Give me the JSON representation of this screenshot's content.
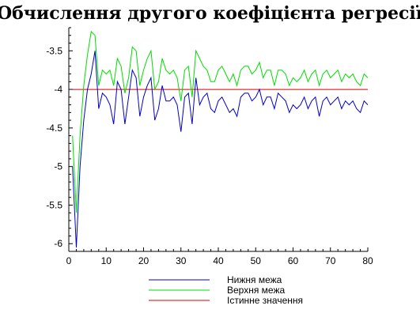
{
  "chart_data": {
    "type": "line",
    "title": "Обчислення другого коефіцієнта регресії",
    "xlabel": "",
    "ylabel": "",
    "xlim": [
      0,
      80
    ],
    "ylim": [
      -6.1,
      -3.2
    ],
    "x_ticks": [
      "0",
      "10",
      "20",
      "30",
      "40",
      "50",
      "60",
      "70",
      "80"
    ],
    "y_ticks": [
      "-3.5",
      "-4",
      "-4.5",
      "-5",
      "-5.5",
      "-6"
    ],
    "x_tick_values": [
      0,
      10,
      20,
      30,
      40,
      50,
      60,
      70,
      80
    ],
    "y_tick_values": [
      -3.5,
      -4,
      -4.5,
      -5,
      -5.5,
      -6
    ],
    "grid": false,
    "legend_position": "bottom",
    "series": [
      {
        "name": "Нижня межа",
        "color": "#0000cc",
        "x": [
          1,
          2,
          3,
          4,
          5,
          6,
          7,
          8,
          9,
          10,
          11,
          12,
          13,
          14,
          15,
          16,
          17,
          18,
          19,
          20,
          21,
          22,
          23,
          24,
          25,
          26,
          27,
          28,
          29,
          30,
          31,
          32,
          33,
          34,
          35,
          36,
          37,
          38,
          39,
          40,
          41,
          42,
          43,
          44,
          45,
          46,
          47,
          48,
          49,
          50,
          51,
          52,
          53,
          54,
          55,
          56,
          57,
          58,
          59,
          60,
          61,
          62,
          63,
          64,
          65,
          66,
          67,
          68,
          69,
          70,
          71,
          72,
          73,
          74,
          75,
          76,
          77,
          78,
          79,
          80
        ],
        "values": [
          -5.0,
          -6.05,
          -5.0,
          -4.4,
          -4.0,
          -3.8,
          -3.5,
          -4.25,
          -4.05,
          -4.1,
          -4.2,
          -4.45,
          -3.9,
          -4.0,
          -4.45,
          -4.1,
          -3.75,
          -3.85,
          -4.35,
          -4.1,
          -3.95,
          -3.85,
          -4.4,
          -4.25,
          -3.95,
          -4.15,
          -4.15,
          -4.1,
          -4.2,
          -4.55,
          -4.1,
          -4.05,
          -4.45,
          -3.85,
          -4.2,
          -4.1,
          -4.05,
          -4.25,
          -4.3,
          -4.15,
          -4.1,
          -4.2,
          -4.3,
          -4.25,
          -4.35,
          -4.1,
          -4.05,
          -4.05,
          -4.15,
          -4.1,
          -4.0,
          -4.2,
          -4.1,
          -4.1,
          -4.25,
          -4.05,
          -4.1,
          -4.15,
          -4.3,
          -4.2,
          -4.25,
          -4.2,
          -4.1,
          -4.25,
          -4.15,
          -4.1,
          -4.35,
          -4.15,
          -4.1,
          -4.2,
          -4.15,
          -4.1,
          -4.25,
          -4.15,
          -4.2,
          -4.15,
          -4.25,
          -4.3,
          -4.15,
          -4.2
        ]
      },
      {
        "name": "Верхня межа",
        "color": "#00dd00",
        "x": [
          1,
          2,
          3,
          4,
          5,
          6,
          7,
          8,
          9,
          10,
          11,
          12,
          13,
          14,
          15,
          16,
          17,
          18,
          19,
          20,
          21,
          22,
          23,
          24,
          25,
          26,
          27,
          28,
          29,
          30,
          31,
          32,
          33,
          34,
          35,
          36,
          37,
          38,
          39,
          40,
          41,
          42,
          43,
          44,
          45,
          46,
          47,
          48,
          49,
          50,
          51,
          52,
          53,
          54,
          55,
          56,
          57,
          58,
          59,
          60,
          61,
          62,
          63,
          64,
          65,
          66,
          67,
          68,
          69,
          70,
          71,
          72,
          73,
          74,
          75,
          76,
          77,
          78,
          79,
          80
        ],
        "values": [
          -4.6,
          -5.6,
          -4.6,
          -3.95,
          -3.55,
          -3.25,
          -3.3,
          -3.95,
          -3.75,
          -3.8,
          -3.75,
          -3.95,
          -3.6,
          -3.7,
          -4.05,
          -3.85,
          -3.45,
          -3.5,
          -3.95,
          -3.75,
          -3.6,
          -3.5,
          -4.0,
          -3.9,
          -3.6,
          -3.75,
          -3.8,
          -3.75,
          -3.85,
          -4.15,
          -3.75,
          -3.7,
          -4.1,
          -3.5,
          -3.6,
          -3.7,
          -3.75,
          -3.9,
          -3.9,
          -3.75,
          -3.7,
          -3.8,
          -3.9,
          -3.8,
          -3.95,
          -3.75,
          -3.7,
          -3.7,
          -3.8,
          -3.75,
          -3.65,
          -3.85,
          -3.75,
          -3.75,
          -3.95,
          -3.75,
          -3.75,
          -3.8,
          -3.95,
          -3.85,
          -3.9,
          -3.85,
          -3.75,
          -3.9,
          -3.8,
          -3.75,
          -3.95,
          -3.8,
          -3.75,
          -3.85,
          -3.8,
          -3.75,
          -3.9,
          -3.8,
          -3.85,
          -3.8,
          -3.9,
          -3.95,
          -3.8,
          -3.85
        ]
      },
      {
        "name": "Істинне значення",
        "color": "#dd0000",
        "x": [
          1,
          80
        ],
        "values": [
          -4.0,
          -4.0
        ]
      }
    ]
  }
}
